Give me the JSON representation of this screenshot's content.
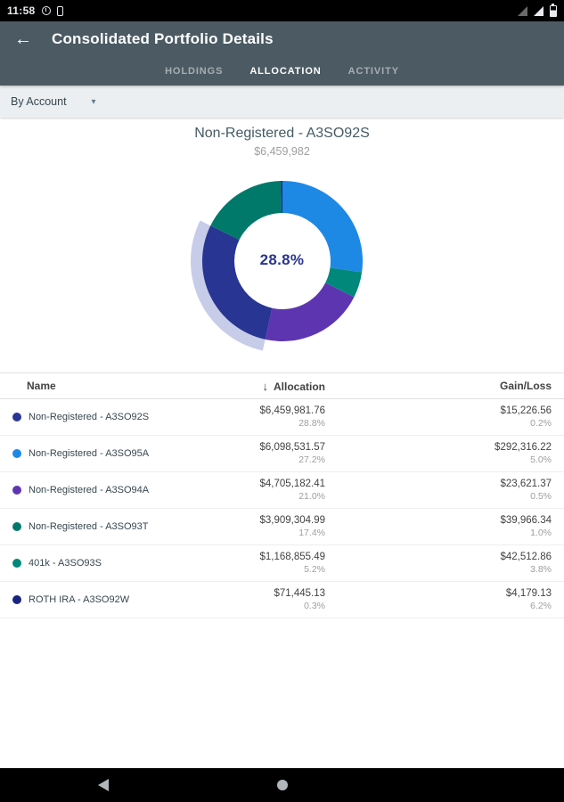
{
  "theme": {
    "app_bar": "#4b5a63",
    "filter_bar": "#eceff1",
    "selected_center_text": "#283593"
  },
  "status_bar": {
    "time": "11:58"
  },
  "app_bar": {
    "title": "Consolidated Portfolio Details",
    "back_arrow": "←"
  },
  "tabs": [
    {
      "label": "HOLDINGS"
    },
    {
      "label": "ALLOCATION"
    },
    {
      "label": "ACTIVITY"
    }
  ],
  "filter": {
    "selected": "By Account",
    "caret": "▾"
  },
  "chart_data": {
    "type": "pie",
    "donut": true,
    "title": "Non-Registered - A3SO92S",
    "subtitle": "$6,459,982",
    "center_label": "28.8%",
    "selected_label": "Non-Registered - A3SO92S",
    "segments": [
      {
        "label": "Non-Registered - A3SO95A",
        "value": 27.2,
        "color": "#1e88e5"
      },
      {
        "label": "401k - A3SO93S",
        "value": 5.2,
        "color": "#00897b"
      },
      {
        "label": "Non-Registered - A3SO94A",
        "value": 21.0,
        "color": "#5e35b1"
      },
      {
        "label": "Non-Registered - A3SO92S",
        "value": 28.8,
        "color": "#283593",
        "selected": true
      },
      {
        "label": "Non-Registered - A3SO93T",
        "value": 17.4,
        "color": "#00796b"
      },
      {
        "label": "ROTH IRA - A3SO92W",
        "value": 0.3,
        "color": "#1a237e"
      }
    ],
    "halo_color": "rgba(121,134,203,0.42)"
  },
  "table": {
    "columns": [
      "Name",
      "Allocation",
      "Gain/Loss"
    ],
    "sort_icon": "↓",
    "rows": [
      {
        "name": "Non-Registered - A3SO92S",
        "color": "#283593",
        "allocation": "$6,459,981.76",
        "allocation_pct": "28.8%",
        "gain": "$15,226.56",
        "gain_pct": "0.2%"
      },
      {
        "name": "Non-Registered - A3SO95A",
        "color": "#1e88e5",
        "allocation": "$6,098,531.57",
        "allocation_pct": "27.2%",
        "gain": "$292,316.22",
        "gain_pct": "5.0%"
      },
      {
        "name": "Non-Registered - A3SO94A",
        "color": "#5e35b1",
        "allocation": "$4,705,182.41",
        "allocation_pct": "21.0%",
        "gain": "$23,621.37",
        "gain_pct": "0.5%"
      },
      {
        "name": "Non-Registered - A3SO93T",
        "color": "#00796b",
        "allocation": "$3,909,304.99",
        "allocation_pct": "17.4%",
        "gain": "$39,966.34",
        "gain_pct": "1.0%"
      },
      {
        "name": "401k - A3SO93S",
        "color": "#00897b",
        "allocation": "$1,168,855.49",
        "allocation_pct": "5.2%",
        "gain": "$42,512.86",
        "gain_pct": "3.8%"
      },
      {
        "name": "ROTH IRA - A3SO92W",
        "color": "#1a237e",
        "allocation": "$71,445.13",
        "allocation_pct": "0.3%",
        "gain": "$4,179.13",
        "gain_pct": "6.2%"
      }
    ]
  }
}
